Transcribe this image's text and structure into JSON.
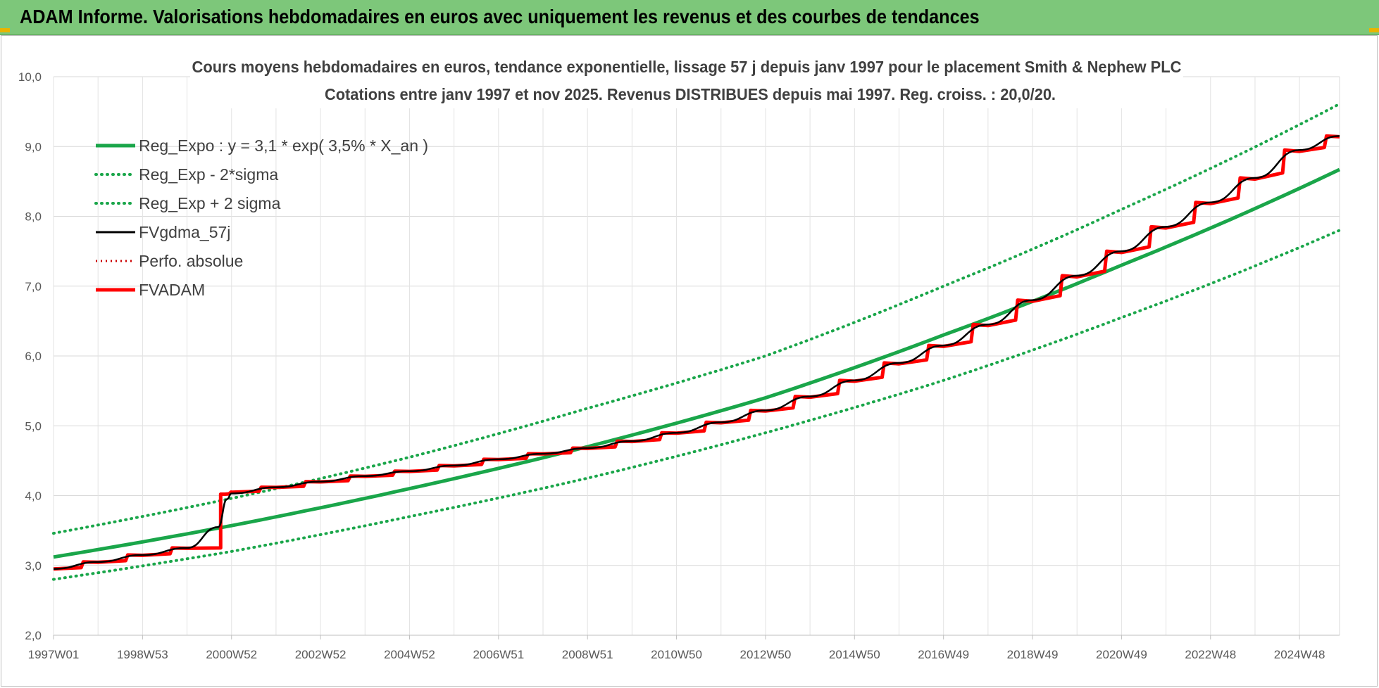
{
  "banner": {
    "title": "ADAM Informe. Valorisations hebdomadaires en euros avec uniquement les revenus et des courbes de tendances"
  },
  "colors": {
    "banner": "#7dc77a",
    "green": "#1aa64a",
    "black": "#000000",
    "red": "#ff0000",
    "dotted_red": "#cc0000"
  },
  "chart_data": {
    "type": "line",
    "title": "Cours moyens hebdomadaires en euros, tendance exponentielle, lissage 57 j depuis janv 1997 pour le placement Smith & Nephew PLC",
    "subtitle": "Cotations entre janv 1997 et nov 2025. Revenus DISTRIBUES depuis mai 1997.  Reg. croiss. : 20,0/20.",
    "x_tick_labels": [
      "1997W01",
      "1998W53",
      "2000W52",
      "2002W52",
      "2004W52",
      "2006W51",
      "2008W51",
      "2010W50",
      "2012W50",
      "2014W50",
      "2016W49",
      "2018W49",
      "2020W49",
      "2022W48",
      "2024W48"
    ],
    "x_tick_years": [
      1997.0,
      1999.0,
      2001.0,
      2003.0,
      2005.0,
      2007.0,
      2009.0,
      2011.0,
      2013.0,
      2015.0,
      2017.0,
      2019.0,
      2021.0,
      2023.0,
      2025.0
    ],
    "xlim": [
      1997.0,
      2025.9
    ],
    "ylim": [
      2.0,
      10.0
    ],
    "y_ticks": [
      "2,0",
      "3,0",
      "4,0",
      "5,0",
      "6,0",
      "7,0",
      "8,0",
      "9,0",
      "10,0"
    ],
    "grid": true,
    "legend_position": "top-left",
    "series": [
      {
        "name": "Reg_Expo : y = 3,1 * exp( 3,5% *  X_an )",
        "style": "solid-green",
        "x": [
          1997.0,
          2001.0,
          2005.0,
          2009.0,
          2013.0,
          2017.0,
          2021.0,
          2025.9
        ],
        "y": [
          3.12,
          3.57,
          4.1,
          4.7,
          5.4,
          6.3,
          7.3,
          8.67
        ]
      },
      {
        "name": "Reg_Exp - 2*sigma",
        "style": "dotted-green",
        "x": [
          1997.0,
          2001.0,
          2005.0,
          2009.0,
          2013.0,
          2017.0,
          2021.0,
          2025.9
        ],
        "y": [
          2.8,
          3.2,
          3.7,
          4.25,
          4.9,
          5.65,
          6.55,
          7.8
        ]
      },
      {
        "name": "Reg_Exp + 2 sigma",
        "style": "dotted-green",
        "x": [
          1997.0,
          2001.0,
          2005.0,
          2009.0,
          2013.0,
          2017.0,
          2021.0,
          2025.9
        ],
        "y": [
          3.46,
          3.96,
          4.55,
          5.25,
          6.0,
          7.0,
          8.1,
          9.61
        ]
      },
      {
        "name": "FVgdma_57j",
        "style": "solid-black",
        "x": [
          1997.0,
          1998.0,
          1999.0,
          2000.0,
          2000.7,
          2000.9,
          2001.0,
          2002.0,
          2003.0,
          2004.0,
          2005.0,
          2006.0,
          2007.0,
          2008.0,
          2009.0,
          2010.0,
          2011.0,
          2012.0,
          2013.0,
          2014.0,
          2015.0,
          2016.0,
          2017.0,
          2018.0,
          2019.0,
          2020.0,
          2021.0,
          2022.0,
          2023.0,
          2024.0,
          2025.0,
          2025.9
        ],
        "y": [
          2.95,
          3.05,
          3.15,
          3.25,
          3.55,
          3.95,
          4.03,
          4.12,
          4.2,
          4.28,
          4.35,
          4.43,
          4.52,
          4.6,
          4.68,
          4.78,
          4.9,
          5.05,
          5.22,
          5.42,
          5.65,
          5.9,
          6.15,
          6.45,
          6.8,
          7.15,
          7.5,
          7.85,
          8.2,
          8.55,
          8.95,
          9.15
        ]
      },
      {
        "name": "Perfo. absolue",
        "style": "dotted-red",
        "x": [],
        "y": []
      },
      {
        "name": "FVADAM",
        "style": "step-red",
        "x": [
          1997.0,
          1998.0,
          1999.0,
          2000.0,
          2000.85,
          2001.0,
          2002.0,
          2003.0,
          2004.0,
          2005.0,
          2006.0,
          2007.0,
          2008.0,
          2009.0,
          2010.0,
          2011.0,
          2012.0,
          2013.0,
          2014.0,
          2015.0,
          2016.0,
          2017.0,
          2018.0,
          2019.0,
          2020.0,
          2021.0,
          2022.0,
          2023.0,
          2024.0,
          2025.0,
          2025.9
        ],
        "y": [
          2.95,
          3.05,
          3.15,
          3.25,
          4.02,
          4.05,
          4.12,
          4.2,
          4.28,
          4.35,
          4.43,
          4.52,
          4.6,
          4.68,
          4.78,
          4.9,
          5.05,
          5.22,
          5.42,
          5.65,
          5.9,
          6.15,
          6.45,
          6.8,
          7.15,
          7.5,
          7.85,
          8.2,
          8.55,
          8.95,
          9.15
        ]
      }
    ]
  }
}
